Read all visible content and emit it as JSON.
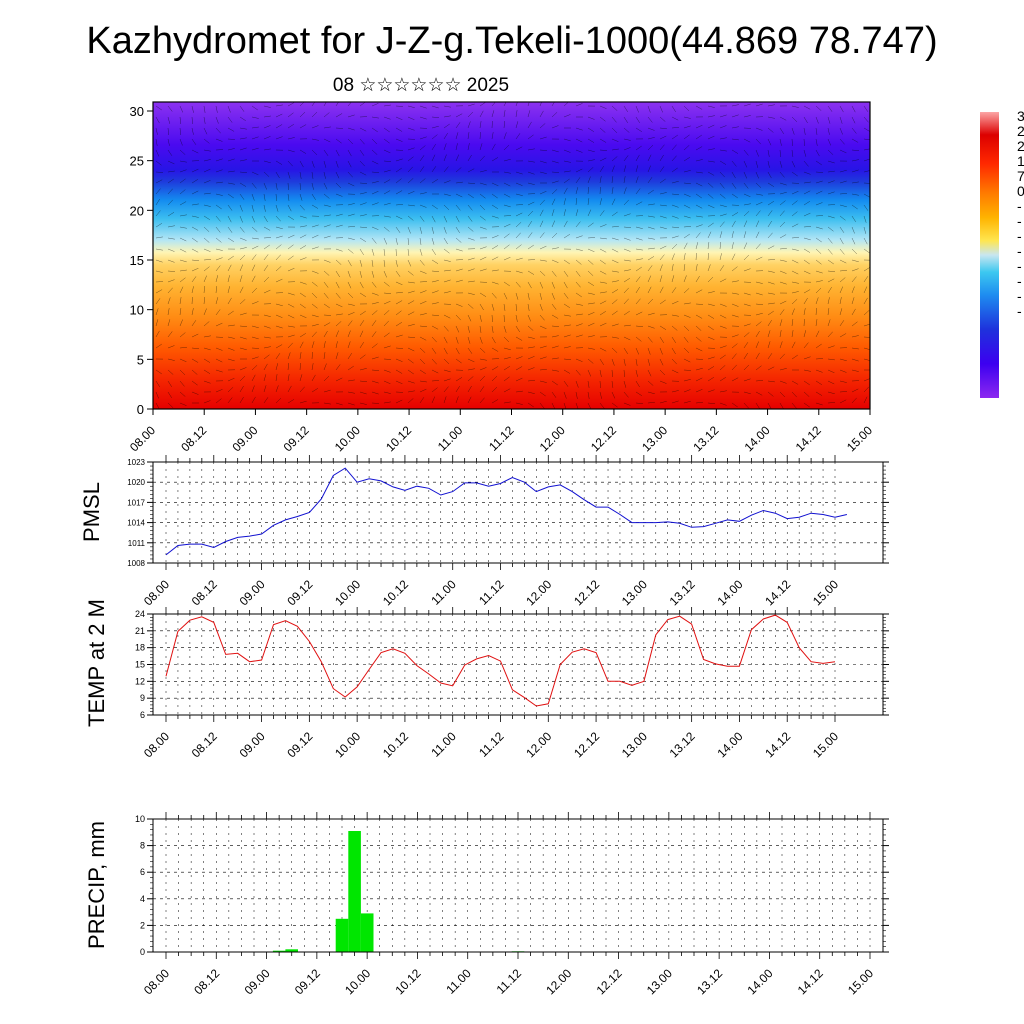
{
  "title": "Kazhydromet for J-Z-g.Tekeli-1000(44.869 78.747)",
  "date_label": "08 ☆☆☆☆☆☆ 2025",
  "time_ticks": [
    "08.00",
    "08.12",
    "09.00",
    "09.12",
    "10.00",
    "10.12",
    "11.00",
    "11.12",
    "12.00",
    "12.12",
    "13.00",
    "13.12",
    "14.00",
    "14.12",
    "15.00"
  ],
  "colors": {
    "pmsl_line": "#1010d0",
    "temp_line": "#e01010",
    "precip_bar": "#00e600"
  },
  "chart_data": [
    {
      "type": "heatmap",
      "xlabel": "",
      "ylabel": "",
      "ylim": [
        0,
        30
      ],
      "y_ticks": [
        0,
        5,
        10,
        15,
        20,
        25,
        30
      ],
      "x_categories": [
        "08.00",
        "08.12",
        "09.00",
        "09.12",
        "10.00",
        "10.12",
        "11.00",
        "11.12",
        "12.00",
        "12.12",
        "13.00",
        "13.12",
        "14.00",
        "14.12",
        "15.00"
      ],
      "colorbar_labels_visible": [
        "3",
        "2",
        "2",
        "1",
        "7",
        "0",
        "-",
        "-",
        "-",
        "-",
        "-",
        "-",
        "-",
        "-"
      ],
      "colormap": [
        "#fca5a5",
        "#dc0000",
        "#ff3c00",
        "#ff7800",
        "#ffb400",
        "#ffe650",
        "#fff5b4",
        "#a0dcf0",
        "#28b4f0",
        "#1478f0",
        "#1e32dc",
        "#2800f0",
        "#5a00f0",
        "#8c28f0"
      ],
      "has_wind_vectors": true
    },
    {
      "type": "line",
      "name": "PMSL",
      "ylabel": "PMSL",
      "ylim": [
        1008,
        1023
      ],
      "y_ticks": [
        1008,
        1011,
        1014,
        1017,
        1020,
        1023
      ],
      "x_step_hours": 3,
      "values": [
        1009.2,
        1010.6,
        1010.8,
        1010.8,
        1010.3,
        1011.2,
        1011.8,
        1012.0,
        1012.3,
        1013.6,
        1014.4,
        1014.9,
        1015.5,
        1017.5,
        1021.0,
        1022.1,
        1020.0,
        1020.5,
        1020.2,
        1019.3,
        1018.8,
        1019.4,
        1019.1,
        1018.1,
        1018.6,
        1019.9,
        1019.9,
        1019.4,
        1019.8,
        1020.7,
        1020.0,
        1018.6,
        1019.3,
        1019.6,
        1018.6,
        1017.4,
        1016.3,
        1016.3,
        1015.2,
        1014.0,
        1014.0,
        1014.0,
        1014.1,
        1013.9,
        1013.3,
        1013.4,
        1013.9,
        1014.4,
        1014.2,
        1015.1,
        1015.8,
        1015.4,
        1014.6,
        1014.8,
        1015.4,
        1015.2,
        1014.8,
        1015.2
      ]
    },
    {
      "type": "line",
      "name": "TEMP at 2 M",
      "ylabel": "TEMP at 2 M",
      "ylim": [
        6,
        24
      ],
      "y_ticks": [
        6,
        9,
        12,
        15,
        18,
        21,
        24
      ],
      "x_step_hours": 3,
      "values": [
        12.9,
        20.9,
        22.9,
        23.5,
        22.5,
        16.8,
        17.0,
        15.5,
        15.8,
        22.1,
        22.8,
        21.8,
        19.1,
        15.5,
        10.7,
        9.2,
        11.0,
        14.1,
        17.1,
        17.8,
        17.0,
        14.8,
        13.3,
        11.7,
        11.2,
        14.9,
        16.0,
        16.6,
        15.6,
        10.5,
        9.1,
        7.6,
        8.0,
        15.0,
        17.2,
        17.8,
        17.1,
        12.0,
        12.0,
        11.3,
        12.0,
        20.3,
        23.0,
        23.6,
        22.2,
        15.9,
        15.1,
        14.7,
        14.7,
        21.2,
        23.1,
        23.8,
        22.5,
        18.0,
        15.5,
        15.2,
        15.5
      ]
    },
    {
      "type": "bar",
      "name": "PRECIP, mm",
      "ylabel": "PRECIP, mm",
      "ylim": [
        0,
        10
      ],
      "y_ticks": [
        0,
        2,
        4,
        6,
        8,
        10
      ],
      "x_step_hours": 3,
      "values": [
        0,
        0,
        0,
        0,
        0,
        0,
        0,
        0,
        0,
        0.1,
        0.2,
        0,
        0,
        0,
        2.5,
        9.1,
        2.9,
        0,
        0,
        0,
        0,
        0,
        0,
        0,
        0,
        0,
        0,
        0,
        0.05,
        0,
        0,
        0,
        0,
        0,
        0,
        0,
        0,
        0,
        0,
        0,
        0,
        0,
        0,
        0,
        0,
        0,
        0,
        0,
        0,
        0,
        0,
        0,
        0,
        0,
        0,
        0,
        0
      ]
    }
  ]
}
